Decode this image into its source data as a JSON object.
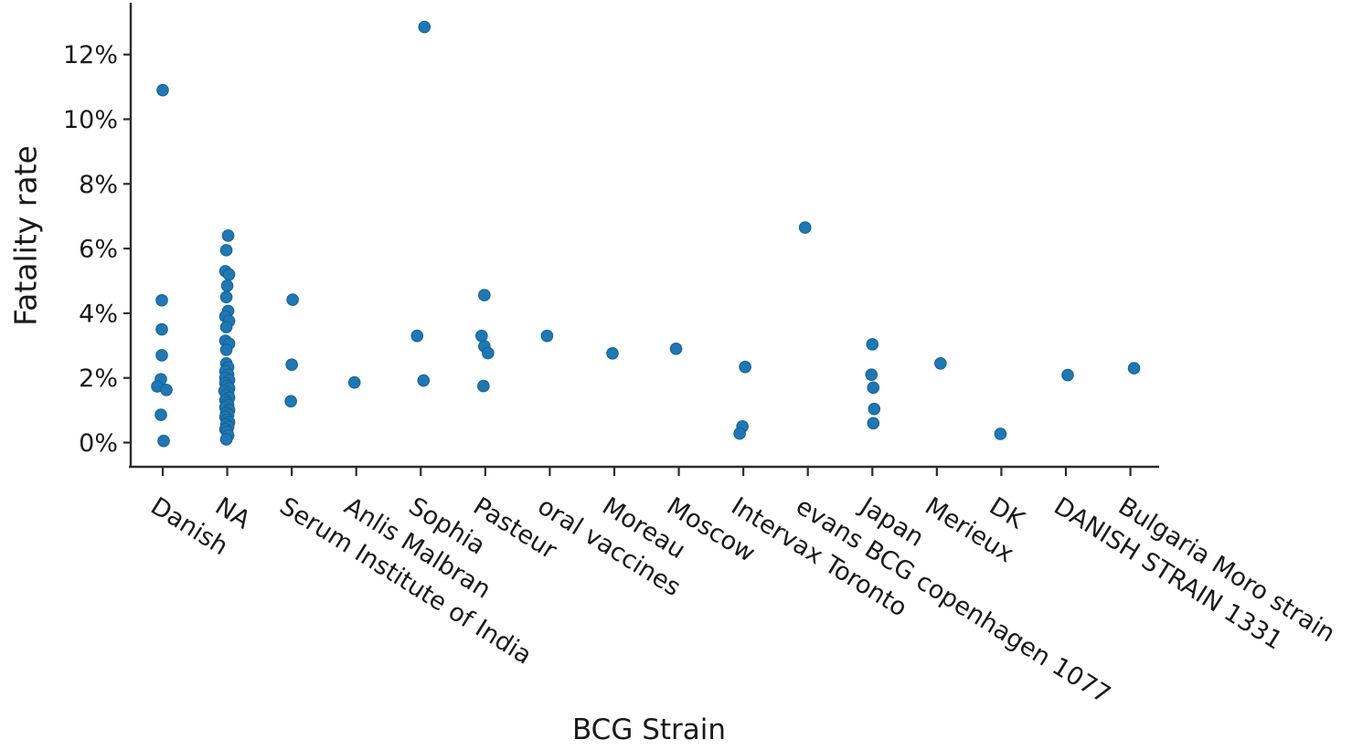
{
  "chart_data": {
    "type": "scatter",
    "title": "",
    "xlabel": "BCG Strain",
    "ylabel": "Fatality rate",
    "legend": null,
    "grid": false,
    "ylim": [
      -0.75,
      13.55
    ],
    "ytick_values": [
      0,
      2,
      4,
      6,
      8,
      10,
      12
    ],
    "ytick_labels": [
      "0%",
      "2%",
      "4%",
      "6%",
      "8%",
      "10%",
      "12%"
    ],
    "point_color": "#1f77b4",
    "point_edge_color": "#15628f",
    "axis_color": "#2b2b2b",
    "text_color": "#1a1a1a",
    "series": [
      {
        "category": "Danish",
        "points": [
          {
            "v": 10.9,
            "dx": 0
          },
          {
            "v": 4.4,
            "dx": -1
          },
          {
            "v": 3.5,
            "dx": -1
          },
          {
            "v": 2.7,
            "dx": -1
          },
          {
            "v": 1.96,
            "dx": -2
          },
          {
            "v": 1.74,
            "dx": -6
          },
          {
            "v": 1.63,
            "dx": 4
          },
          {
            "v": 0.86,
            "dx": -2
          },
          {
            "v": 0.05,
            "dx": 1
          }
        ]
      },
      {
        "category": "NA",
        "points": [
          {
            "v": 6.4,
            "dx": 1
          },
          {
            "v": 5.95,
            "dx": -1
          },
          {
            "v": 5.3,
            "dx": -2
          },
          {
            "v": 5.2,
            "dx": 2
          },
          {
            "v": 4.85,
            "dx": 0
          },
          {
            "v": 4.5,
            "dx": -1
          },
          {
            "v": 4.07,
            "dx": 1
          },
          {
            "v": 3.9,
            "dx": -2
          },
          {
            "v": 3.76,
            "dx": 2
          },
          {
            "v": 3.57,
            "dx": -1
          },
          {
            "v": 3.15,
            "dx": -2
          },
          {
            "v": 3.06,
            "dx": 2
          },
          {
            "v": 2.87,
            "dx": -1
          },
          {
            "v": 2.45,
            "dx": -1
          },
          {
            "v": 2.33,
            "dx": 1
          },
          {
            "v": 2.21,
            "dx": -2
          },
          {
            "v": 2.1,
            "dx": 1
          },
          {
            "v": 2.0,
            "dx": -2
          },
          {
            "v": 1.93,
            "dx": 2
          },
          {
            "v": 1.84,
            "dx": -2
          },
          {
            "v": 1.76,
            "dx": 0
          },
          {
            "v": 1.68,
            "dx": 2
          },
          {
            "v": 1.6,
            "dx": -3
          },
          {
            "v": 1.53,
            "dx": 1
          },
          {
            "v": 1.46,
            "dx": -1
          },
          {
            "v": 1.39,
            "dx": 2
          },
          {
            "v": 1.31,
            "dx": -2
          },
          {
            "v": 1.23,
            "dx": 0
          },
          {
            "v": 1.16,
            "dx": 1
          },
          {
            "v": 1.09,
            "dx": -2
          },
          {
            "v": 1.01,
            "dx": 2
          },
          {
            "v": 0.93,
            "dx": -1
          },
          {
            "v": 0.86,
            "dx": 1
          },
          {
            "v": 0.79,
            "dx": -2
          },
          {
            "v": 0.71,
            "dx": 0
          },
          {
            "v": 0.63,
            "dx": 2
          },
          {
            "v": 0.56,
            "dx": -1
          },
          {
            "v": 0.49,
            "dx": 1
          },
          {
            "v": 0.41,
            "dx": -2
          },
          {
            "v": 0.33,
            "dx": 0
          },
          {
            "v": 0.22,
            "dx": 1
          },
          {
            "v": 0.1,
            "dx": -1
          }
        ]
      },
      {
        "category": "Serum Institute of India",
        "points": [
          {
            "v": 4.42,
            "dx": 1
          },
          {
            "v": 2.41,
            "dx": 0
          },
          {
            "v": 1.28,
            "dx": -1
          }
        ]
      },
      {
        "category": "Anlis Malbran",
        "points": [
          {
            "v": 1.86,
            "dx": -2
          }
        ]
      },
      {
        "category": "Sophia",
        "points": [
          {
            "v": 12.85,
            "dx": 4
          },
          {
            "v": 3.3,
            "dx": -4
          },
          {
            "v": 1.92,
            "dx": 3
          }
        ]
      },
      {
        "category": "Pasteur",
        "points": [
          {
            "v": 4.56,
            "dx": -1
          },
          {
            "v": 3.3,
            "dx": -4
          },
          {
            "v": 2.98,
            "dx": -1
          },
          {
            "v": 2.77,
            "dx": 3
          },
          {
            "v": 1.75,
            "dx": -2
          }
        ]
      },
      {
        "category": "oral vaccines",
        "points": [
          {
            "v": 3.3,
            "dx": -3
          }
        ]
      },
      {
        "category": "Moreau",
        "points": [
          {
            "v": 2.76,
            "dx": -2
          }
        ]
      },
      {
        "category": "Moscow",
        "points": [
          {
            "v": 2.9,
            "dx": -3
          }
        ]
      },
      {
        "category": "Intervax Toronto",
        "points": [
          {
            "v": 2.34,
            "dx": 2
          },
          {
            "v": 0.5,
            "dx": -1
          },
          {
            "v": 0.28,
            "dx": -4
          }
        ]
      },
      {
        "category": "evans BCG copenhagen 1077",
        "points": [
          {
            "v": 6.65,
            "dx": -3
          }
        ]
      },
      {
        "category": "Japan",
        "points": [
          {
            "v": 3.04,
            "dx": 0
          },
          {
            "v": 2.1,
            "dx": -1
          },
          {
            "v": 1.7,
            "dx": 1
          },
          {
            "v": 1.04,
            "dx": 2
          },
          {
            "v": 0.6,
            "dx": 1
          }
        ]
      },
      {
        "category": "Merieux",
        "points": [
          {
            "v": 2.45,
            "dx": 4
          }
        ]
      },
      {
        "category": "DK",
        "points": [
          {
            "v": 0.27,
            "dx": -1
          }
        ]
      },
      {
        "category": "DANISH STRAIN 1331",
        "points": [
          {
            "v": 2.09,
            "dx": 2
          }
        ]
      },
      {
        "category": "Bulgaria Moro strain",
        "points": [
          {
            "v": 2.3,
            "dx": 4
          }
        ]
      }
    ]
  }
}
